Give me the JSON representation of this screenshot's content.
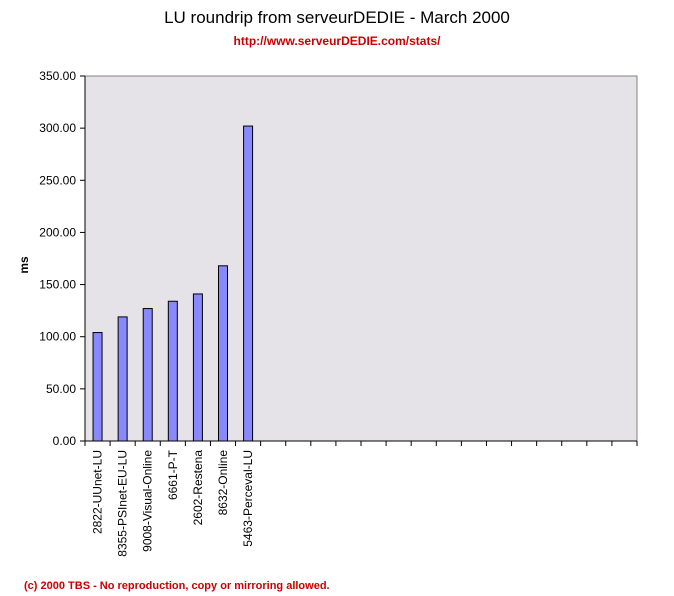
{
  "colors": {
    "plot_bg": "#e6e3e8",
    "bar_fill": "#8888ff",
    "bar_stroke": "#000000",
    "subtitle": "#cc0000",
    "footer": "#cc0000"
  },
  "footer": "(c) 2000 TBS - No reproduction, copy or mirroring allowed.",
  "chart_data": {
    "type": "bar",
    "title": "LU roundrip from serveurDEDIE - March 2000",
    "subtitle": "http://www.serveurDEDIE.com/stats/",
    "xlabel": "",
    "ylabel": "ms",
    "ylim": [
      0,
      350
    ],
    "yticks": [
      "0.00",
      "50.00",
      "100.00",
      "150.00",
      "200.00",
      "250.00",
      "300.00",
      "350.00"
    ],
    "slot_count": 22,
    "grid": false,
    "categories": [
      "2822-UUnet-LU",
      "8355-PSInet-EU-LU",
      "9008-Visual-Online",
      "6661-P-T",
      "2602-Restena",
      "8632-Online",
      "5463-Perceval-LU"
    ],
    "values": [
      104,
      119,
      127,
      134,
      141,
      168,
      302
    ]
  }
}
